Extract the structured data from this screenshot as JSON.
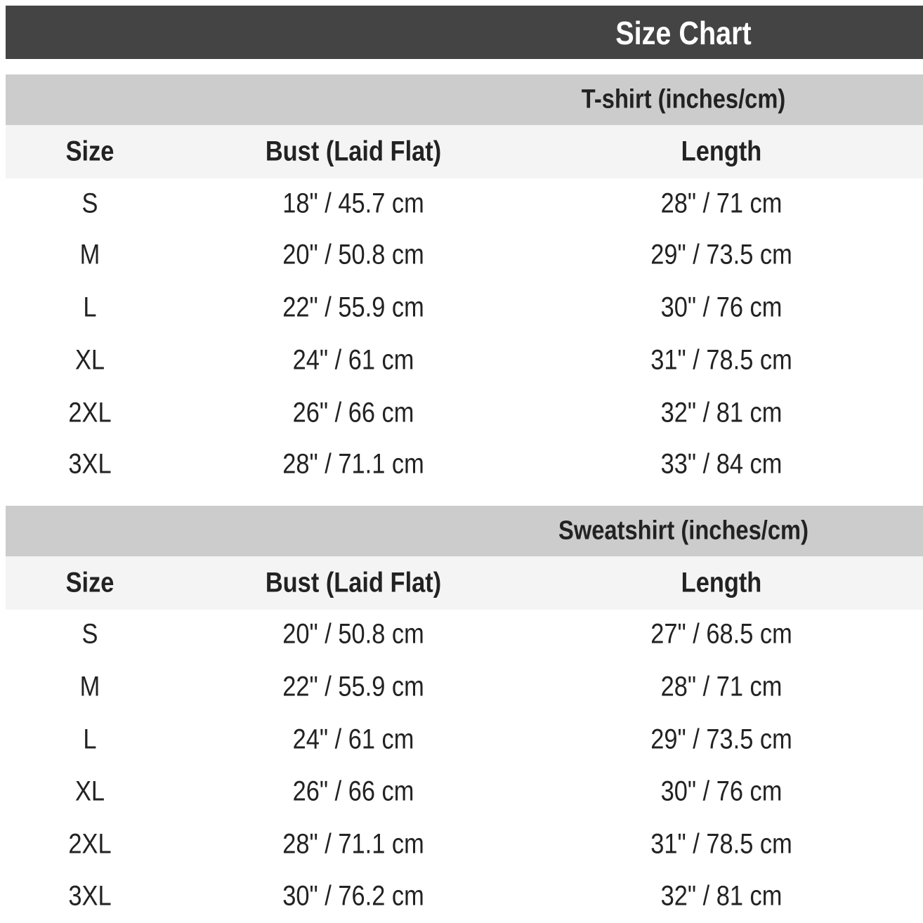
{
  "title": "Size Chart",
  "colors": {
    "title_bar": "#444444",
    "section_bar": "#cccccc",
    "header_row": "#f4f4f4"
  },
  "sections": [
    {
      "title": "T-shirt (inches/cm)",
      "headers": [
        "Size",
        "Bust (Laid Flat)",
        "Length"
      ],
      "rows": [
        [
          "S",
          "18\" / 45.7 cm",
          "28\" / 71 cm"
        ],
        [
          "M",
          "20\" / 50.8 cm",
          "29\" / 73.5 cm"
        ],
        [
          "L",
          "22\" / 55.9 cm",
          "30\" / 76 cm"
        ],
        [
          "XL",
          "24\" / 61 cm",
          "31\" / 78.5 cm"
        ],
        [
          "2XL",
          "26\" / 66 cm",
          "32\" / 81 cm"
        ],
        [
          "3XL",
          "28\" / 71.1 cm",
          "33\" / 84 cm"
        ]
      ]
    },
    {
      "title": "Sweatshirt (inches/cm)",
      "headers": [
        "Size",
        "Bust (Laid Flat)",
        "Length"
      ],
      "rows": [
        [
          "S",
          "20\" / 50.8 cm",
          "27\" / 68.5 cm"
        ],
        [
          "M",
          "22\" / 55.9 cm",
          "28\" / 71 cm"
        ],
        [
          "L",
          "24\" / 61 cm",
          "29\" / 73.5 cm"
        ],
        [
          "XL",
          "26\" / 66 cm",
          "30\" / 76 cm"
        ],
        [
          "2XL",
          "28\" / 71.1 cm",
          "31\" / 78.5 cm"
        ],
        [
          "3XL",
          "30\" / 76.2 cm",
          "32\" / 81 cm"
        ]
      ]
    }
  ]
}
